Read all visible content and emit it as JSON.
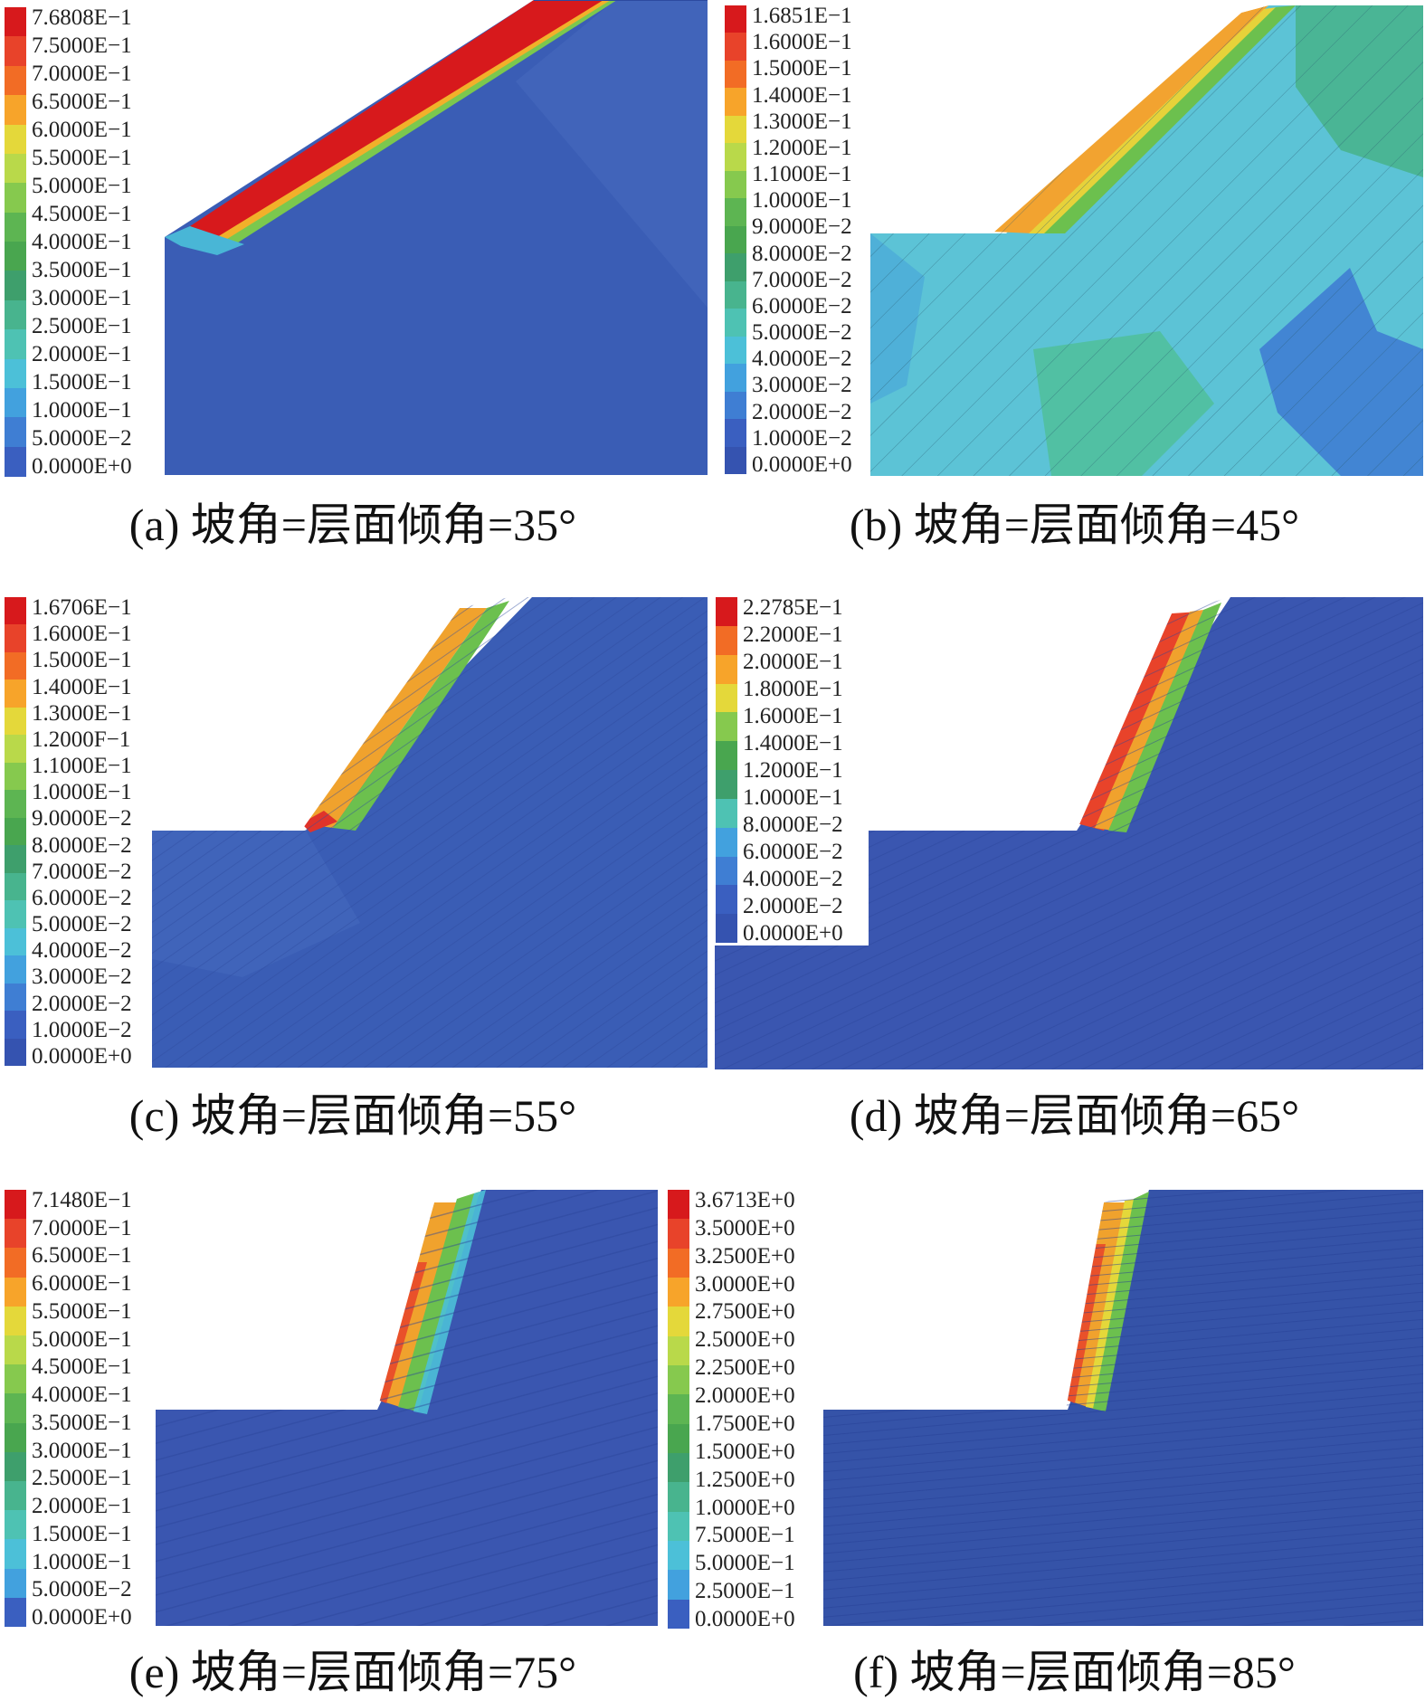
{
  "figure": {
    "panels": [
      {
        "id": "a",
        "caption": "(a) 坡角=层面倾角=35°",
        "legend": [
          "7.6808E−1",
          "7.5000E−1",
          "7.0000E−1",
          "6.5000E−1",
          "6.0000E−1",
          "5.5000E−1",
          "5.0000E−1",
          "4.5000E−1",
          "4.0000E−1",
          "3.5000E−1",
          "3.0000E−1",
          "2.5000E−1",
          "2.0000E−1",
          "1.5000E−1",
          "1.0000E−1",
          "5.0000E−2",
          "0.0000E+0"
        ],
        "legend_colors": [
          "#d7191c",
          "#e8432a",
          "#f26c25",
          "#f7a42a",
          "#e4d83a",
          "#b9d94a",
          "#86c94e",
          "#5db552",
          "#49a64f",
          "#3e9f6c",
          "#48b48e",
          "#4ec2b3",
          "#4cc0d8",
          "#42a1de",
          "#3f7ed3",
          "#3a5fc0"
        ],
        "field_color": "#3a5db5"
      },
      {
        "id": "b",
        "caption": "(b) 坡角=层面倾角=45°",
        "legend": [
          "1.6851E−1",
          "1.6000E−1",
          "1.5000E−1",
          "1.4000E−1",
          "1.3000E−1",
          "1.2000E−1",
          "1.1000E−1",
          "1.0000E−1",
          "9.0000E−2",
          "8.0000E−2",
          "7.0000E−2",
          "6.0000E−2",
          "5.0000E−2",
          "4.0000E−2",
          "3.0000E−2",
          "2.0000E−2",
          "1.0000E−2",
          "0.0000E+0"
        ],
        "legend_colors": [
          "#d7191c",
          "#e8432a",
          "#f26c25",
          "#f7a42a",
          "#e4d83a",
          "#b9d94a",
          "#86c94e",
          "#5db552",
          "#49a64f",
          "#3e9f6c",
          "#48b48e",
          "#4ec2b3",
          "#4cc0d8",
          "#42a1de",
          "#3f7ed3",
          "#3a5fc0",
          "#3553b0"
        ],
        "field_color": "#5cc3d6"
      },
      {
        "id": "c",
        "caption": "(c) 坡角=层面倾角=55°",
        "legend": [
          "1.6706E−1",
          "1.6000E−1",
          "1.5000E−1",
          "1.4000E−1",
          "1.3000E−1",
          "1.2000F−1",
          "1.1000E−1",
          "1.0000E−1",
          "9.0000E−2",
          "8.0000E−2",
          "7.0000E−2",
          "6.0000E−2",
          "5.0000E−2",
          "4.0000E−2",
          "3.0000E−2",
          "2.0000E−2",
          "1.0000E−2",
          "0.0000E+0"
        ],
        "legend_colors": [
          "#d7191c",
          "#e8432a",
          "#f26c25",
          "#f7a42a",
          "#e4d83a",
          "#b9d94a",
          "#86c94e",
          "#5db552",
          "#49a64f",
          "#3e9f6c",
          "#48b48e",
          "#4ec2b3",
          "#4cc0d8",
          "#42a1de",
          "#3f7ed3",
          "#3a5fc0",
          "#3553b0"
        ],
        "field_color": "#3a5db5"
      },
      {
        "id": "d",
        "caption": "(d) 坡角=层面倾角=65°",
        "legend": [
          "2.2785E−1",
          "2.2000E−1",
          "2.0000E−1",
          "1.8000E−1",
          "1.6000E−1",
          "1.4000E−1",
          "1.2000E−1",
          "1.0000E−1",
          "8.0000E−2",
          "6.0000E−2",
          "4.0000E−2",
          "2.0000E−2",
          "0.0000E+0"
        ],
        "legend_colors": [
          "#d7191c",
          "#f26c25",
          "#f7a42a",
          "#e4d83a",
          "#86c94e",
          "#49a64f",
          "#3e9f6c",
          "#4ec2b3",
          "#42a1de",
          "#3f7ed3",
          "#3a5fc0",
          "#3553b0"
        ],
        "field_color": "#3a56b0"
      },
      {
        "id": "e",
        "caption": "(e) 坡角=层面倾角=75°",
        "legend": [
          "7.1480E−1",
          "7.0000E−1",
          "6.5000E−1",
          "6.0000E−1",
          "5.5000E−1",
          "5.0000E−1",
          "4.5000E−1",
          "4.0000E−1",
          "3.5000E−1",
          "3.0000E−1",
          "2.5000E−1",
          "2.0000E−1",
          "1.5000E−1",
          "1.0000E−1",
          "5.0000E−2",
          "0.0000E+0"
        ],
        "legend_colors": [
          "#d7191c",
          "#e8432a",
          "#f26c25",
          "#f7a42a",
          "#e4d83a",
          "#b9d94a",
          "#86c94e",
          "#5db552",
          "#49a64f",
          "#3e9f6c",
          "#48b48e",
          "#4ec2b3",
          "#4cc0d8",
          "#42a1de",
          "#3a5fc0"
        ],
        "field_color": "#3a56b0"
      },
      {
        "id": "f",
        "caption": "(f) 坡角=层面倾角=85°",
        "legend": [
          "3.6713E+0",
          "3.5000E+0",
          "3.2500E+0",
          "3.0000E+0",
          "2.7500E+0",
          "2.5000E+0",
          "2.2500E+0",
          "2.0000E+0",
          "1.7500E+0",
          "1.5000E+0",
          "1.2500E+0",
          "1.0000E+0",
          "7.5000E−1",
          "5.0000E−1",
          "2.5000E−1",
          "0.0000E+0"
        ],
        "legend_colors": [
          "#d7191c",
          "#e8432a",
          "#f26c25",
          "#f7a42a",
          "#e4d83a",
          "#b9d94a",
          "#86c94e",
          "#5db552",
          "#49a64f",
          "#3e9f6c",
          "#48b48e",
          "#4ec2b3",
          "#4cc0d8",
          "#42a1de",
          "#3a5fc0"
        ],
        "field_color": "#3553a8"
      }
    ]
  }
}
